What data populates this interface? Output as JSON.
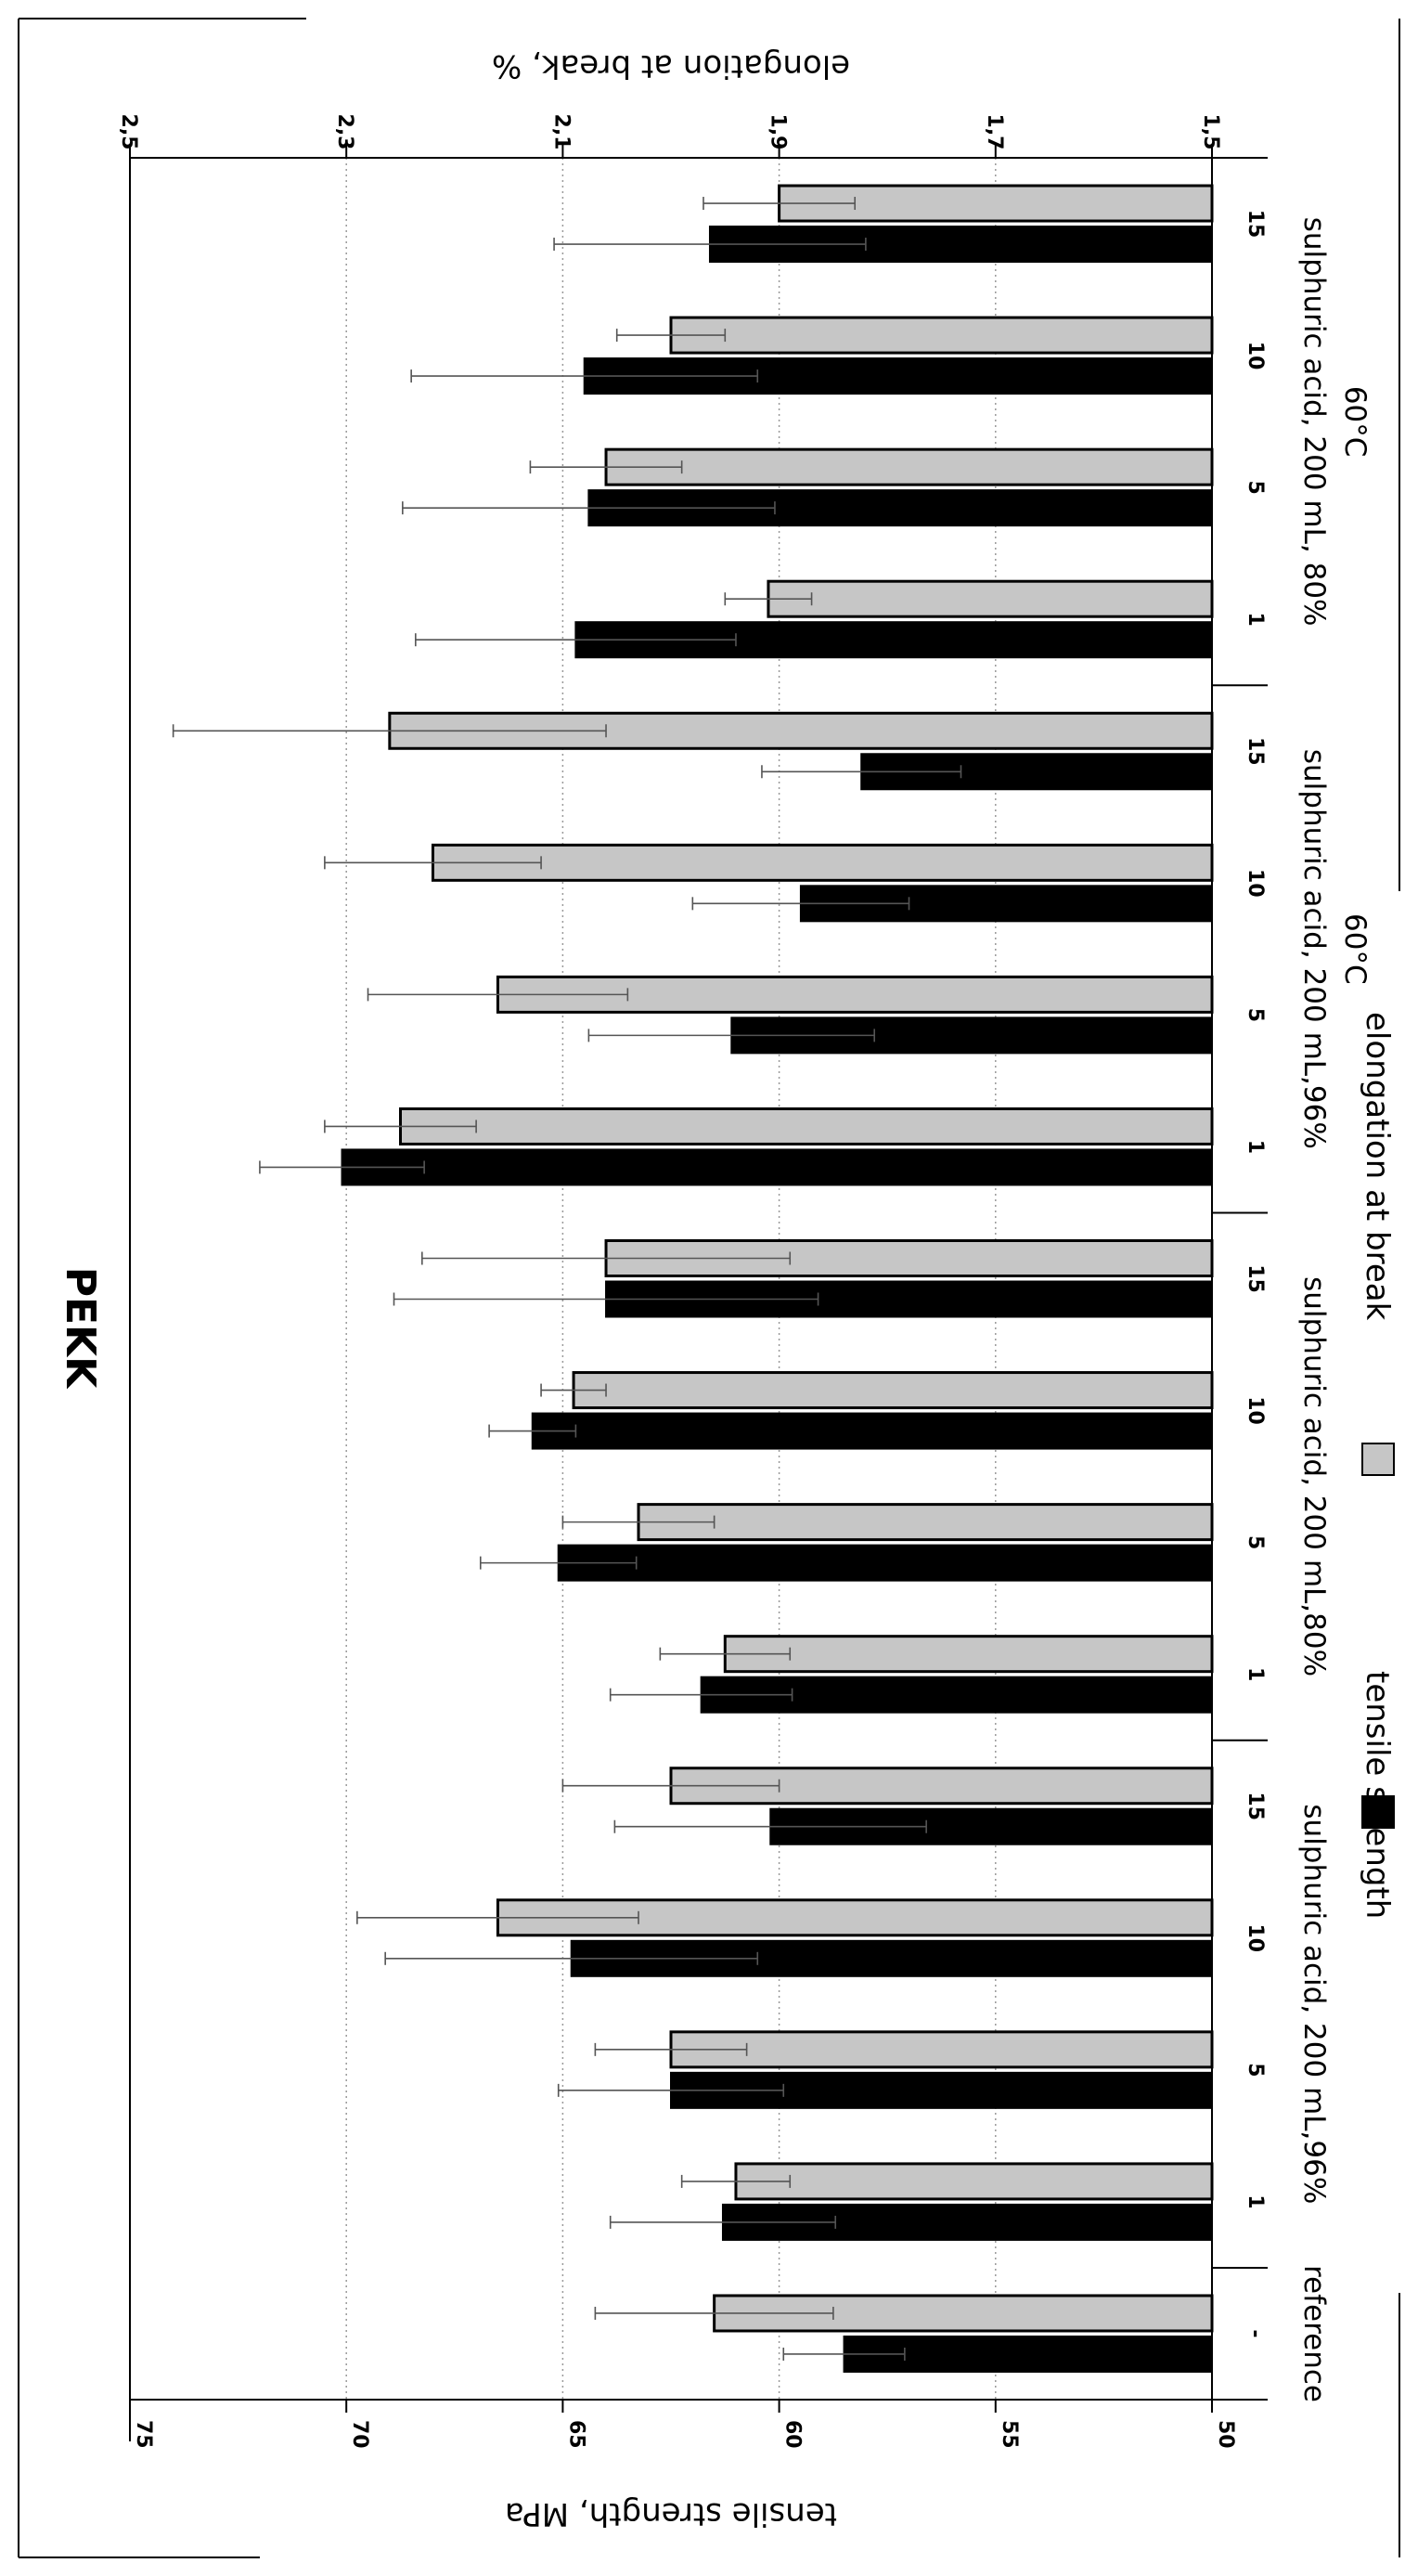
{
  "chart_data": {
    "type": "bar",
    "orientation": "rotated-90-clockwise",
    "title": "PEKK",
    "primary_axis": {
      "label": "tensile strength, MPa",
      "range": [
        50,
        75
      ],
      "ticks": [
        "50",
        "55",
        "60",
        "65",
        "70",
        "75"
      ]
    },
    "secondary_axis": {
      "label": "elongation at break, %",
      "range": [
        1.5,
        2.5
      ],
      "ticks": [
        "1,5",
        "1,7",
        "1,9",
        "2,1",
        "2,3",
        "2,5"
      ]
    },
    "grid": true,
    "legend_position": "bottom",
    "groups": [
      {
        "label_lines": [
          "reference"
        ],
        "categories": [
          "-"
        ]
      },
      {
        "label_lines": [
          "sulphuric acid, 200 mL,96%"
        ],
        "categories": [
          "1",
          "5",
          "10",
          "15"
        ]
      },
      {
        "label_lines": [
          "sulphuric acid, 200 mL,80%"
        ],
        "categories": [
          "1",
          "5",
          "10",
          "15"
        ]
      },
      {
        "label_lines": [
          "sulphuric acid, 200 mL,96%",
          "60°C"
        ],
        "categories": [
          "1",
          "5",
          "10",
          "15"
        ]
      },
      {
        "label_lines": [
          "sulphuric acid, 200 mL, 80%",
          "60°C"
        ],
        "categories": [
          "1",
          "5",
          "10",
          "15"
        ]
      }
    ],
    "series": [
      {
        "name": "tensile strength",
        "axis": "primary",
        "color": "#000000",
        "values": [
          58.5,
          61.3,
          62.5,
          64.8,
          60.2,
          61.8,
          65.1,
          65.7,
          64.0,
          70.1,
          61.1,
          59.5,
          58.1,
          64.7,
          64.4,
          64.5,
          61.6
        ],
        "errors": [
          1.4,
          2.6,
          2.6,
          4.3,
          3.6,
          2.1,
          1.8,
          1.0,
          4.9,
          1.9,
          3.3,
          2.5,
          2.3,
          3.7,
          4.3,
          4.0,
          3.6
        ]
      },
      {
        "name": "elongation at break",
        "axis": "secondary",
        "color": "#c6c6c6",
        "values": [
          1.96,
          1.94,
          2.0,
          2.16,
          2.0,
          1.95,
          2.03,
          2.09,
          2.06,
          2.25,
          2.16,
          2.22,
          2.26,
          1.91,
          2.06,
          2.0,
          1.9
        ],
        "errors": [
          0.11,
          0.05,
          0.07,
          0.13,
          0.1,
          0.06,
          0.07,
          0.03,
          0.17,
          0.07,
          0.12,
          0.1,
          0.2,
          0.04,
          0.07,
          0.05,
          0.07
        ]
      }
    ]
  }
}
